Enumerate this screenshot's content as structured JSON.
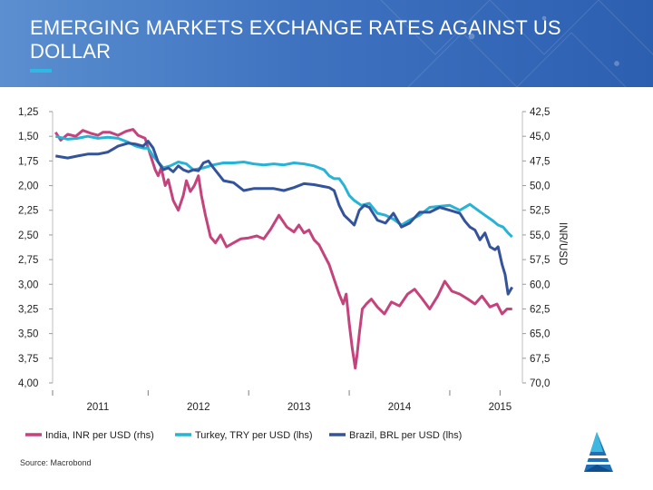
{
  "header": {
    "title": "EMERGING MARKETS EXCHANGE RATES AGAINST US DOLLAR"
  },
  "source": "Source: Macrobond",
  "colors": {
    "india": "#c4437c",
    "turkey": "#27b3d6",
    "brazil": "#34539a",
    "header": "#3f73c0",
    "accent": "#30b8e4"
  },
  "chart_data": {
    "type": "line",
    "title": "",
    "xlabel": "",
    "right_axis_label": "INR/USD",
    "x_ticks": [
      "2011",
      "2012",
      "2013",
      "2014",
      "2015"
    ],
    "x_tick_values": [
      2011.0,
      2012.0,
      2013.0,
      2014.0,
      2015.0
    ],
    "xlim": [
      2010.55,
      2015.15
    ],
    "left_axis": {
      "ylim": [
        1.25,
        4.0
      ],
      "inverted": true,
      "ticks": [
        "1,25",
        "1,50",
        "1,75",
        "2,00",
        "2,25",
        "2,50",
        "2,75",
        "3,00",
        "3,25",
        "3,50",
        "3,75",
        "4,00"
      ],
      "tick_values": [
        1.25,
        1.5,
        1.75,
        2.0,
        2.25,
        2.5,
        2.75,
        3.0,
        3.25,
        3.5,
        3.75,
        4.0
      ]
    },
    "right_axis": {
      "ylim": [
        42.5,
        70.0
      ],
      "inverted": true,
      "ticks": [
        "42,5",
        "45,0",
        "47,5",
        "50,0",
        "52,5",
        "55,0",
        "57,5",
        "60,0",
        "62,5",
        "65,0",
        "67,5",
        "70,0"
      ],
      "tick_values": [
        42.5,
        45.0,
        47.5,
        50.0,
        52.5,
        55.0,
        57.5,
        60.0,
        62.5,
        65.0,
        67.5,
        70.0
      ]
    },
    "series": [
      {
        "name": "India, INR per USD (rhs)",
        "axis": "right",
        "color": "#c4437c",
        "x": [
          2010.58,
          2010.63,
          2010.7,
          2010.78,
          2010.85,
          2010.93,
          2011.0,
          2011.05,
          2011.12,
          2011.2,
          2011.28,
          2011.35,
          2011.4,
          2011.47,
          2011.52,
          2011.57,
          2011.6,
          2011.63,
          2011.67,
          2011.7,
          2011.75,
          2011.8,
          2011.85,
          2011.88,
          2011.92,
          2011.96,
          2012.0,
          2012.03,
          2012.07,
          2012.12,
          2012.17,
          2012.22,
          2012.28,
          2012.35,
          2012.42,
          2012.5,
          2012.58,
          2012.65,
          2012.72,
          2012.8,
          2012.88,
          2012.95,
          2013.0,
          2013.05,
          2013.1,
          2013.15,
          2013.2,
          2013.25,
          2013.3,
          2013.35,
          2013.4,
          2013.44,
          2013.47,
          2013.5,
          2013.53,
          2013.56,
          2013.58,
          2013.6,
          2013.63,
          2013.67,
          2013.72,
          2013.78,
          2013.85,
          2013.92,
          2014.0,
          2014.08,
          2014.15,
          2014.22,
          2014.3,
          2014.38,
          2014.45,
          2014.52,
          2014.6,
          2014.68,
          2014.75,
          2014.82,
          2014.9,
          2014.97,
          2015.02,
          2015.07,
          2015.12
        ],
        "y": [
          44.6,
          45.4,
          44.8,
          45.0,
          44.4,
          44.7,
          44.9,
          44.6,
          44.6,
          44.9,
          44.5,
          44.3,
          44.9,
          45.2,
          46.8,
          48.4,
          49.0,
          48.2,
          50.0,
          49.4,
          51.5,
          52.5,
          51.0,
          49.5,
          50.6,
          50.0,
          49.0,
          51.0,
          53.0,
          55.2,
          55.8,
          55.0,
          56.2,
          55.8,
          55.4,
          55.3,
          55.1,
          55.4,
          54.4,
          53.0,
          54.2,
          54.7,
          54.0,
          54.8,
          54.5,
          55.5,
          56.0,
          57.0,
          58.0,
          59.5,
          61.0,
          62.0,
          61.0,
          64.0,
          66.5,
          68.5,
          67.0,
          65.0,
          62.5,
          62.0,
          61.5,
          62.3,
          63.0,
          61.8,
          62.2,
          61.0,
          60.5,
          61.4,
          62.5,
          61.2,
          59.7,
          60.7,
          61.0,
          61.5,
          62.0,
          61.2,
          62.3,
          62.0,
          63.0,
          62.5,
          62.5
        ]
      },
      {
        "name": "Turkey, TRY per USD (lhs)",
        "axis": "left",
        "color": "#27b3d6",
        "x": [
          2010.58,
          2010.7,
          2010.8,
          2010.9,
          2011.0,
          2011.1,
          2011.2,
          2011.3,
          2011.38,
          2011.45,
          2011.5,
          2011.55,
          2011.6,
          2011.65,
          2011.72,
          2011.8,
          2011.88,
          2011.95,
          2012.05,
          2012.15,
          2012.25,
          2012.35,
          2012.45,
          2012.55,
          2012.65,
          2012.75,
          2012.85,
          2012.95,
          2013.05,
          2013.15,
          2013.25,
          2013.3,
          2013.35,
          2013.4,
          2013.45,
          2013.5,
          2013.55,
          2013.62,
          2013.7,
          2013.78,
          2013.86,
          2013.94,
          2014.02,
          2014.1,
          2014.2,
          2014.3,
          2014.4,
          2014.5,
          2014.6,
          2014.7,
          2014.78,
          2014.85,
          2014.92,
          2014.98,
          2015.03,
          2015.08,
          2015.12
        ],
        "y": [
          1.5,
          1.53,
          1.52,
          1.5,
          1.52,
          1.51,
          1.52,
          1.56,
          1.6,
          1.62,
          1.62,
          1.7,
          1.76,
          1.82,
          1.8,
          1.76,
          1.78,
          1.84,
          1.82,
          1.79,
          1.77,
          1.77,
          1.76,
          1.78,
          1.79,
          1.78,
          1.79,
          1.77,
          1.78,
          1.8,
          1.84,
          1.9,
          1.93,
          1.93,
          2.0,
          2.1,
          2.15,
          2.2,
          2.18,
          2.28,
          2.3,
          2.34,
          2.4,
          2.35,
          2.3,
          2.22,
          2.21,
          2.2,
          2.25,
          2.19,
          2.25,
          2.3,
          2.35,
          2.4,
          2.42,
          2.48,
          2.52
        ]
      },
      {
        "name": "Brazil, BRL per USD (lhs)",
        "axis": "left",
        "color": "#34539a",
        "x": [
          2010.58,
          2010.7,
          2010.8,
          2010.9,
          2011.0,
          2011.1,
          2011.2,
          2011.3,
          2011.38,
          2011.45,
          2011.5,
          2011.55,
          2011.6,
          2011.65,
          2011.7,
          2011.75,
          2011.8,
          2011.85,
          2011.9,
          2011.95,
          2012.0,
          2012.05,
          2012.1,
          2012.15,
          2012.25,
          2012.35,
          2012.45,
          2012.55,
          2012.65,
          2012.75,
          2012.85,
          2012.95,
          2013.05,
          2013.15,
          2013.25,
          2013.3,
          2013.35,
          2013.4,
          2013.45,
          2013.5,
          2013.55,
          2013.6,
          2013.65,
          2013.7,
          2013.78,
          2013.86,
          2013.94,
          2014.02,
          2014.1,
          2014.2,
          2014.3,
          2014.4,
          2014.5,
          2014.6,
          2014.65,
          2014.7,
          2014.75,
          2014.8,
          2014.85,
          2014.9,
          2014.95,
          2014.98,
          2015.02,
          2015.05,
          2015.08,
          2015.12
        ],
        "y": [
          1.7,
          1.72,
          1.7,
          1.68,
          1.68,
          1.66,
          1.6,
          1.57,
          1.58,
          1.6,
          1.55,
          1.62,
          1.76,
          1.84,
          1.82,
          1.86,
          1.8,
          1.84,
          1.86,
          1.84,
          1.85,
          1.77,
          1.75,
          1.82,
          1.95,
          1.97,
          2.05,
          2.03,
          2.03,
          2.03,
          2.05,
          2.02,
          1.98,
          1.99,
          2.01,
          2.02,
          2.05,
          2.2,
          2.3,
          2.35,
          2.4,
          2.25,
          2.2,
          2.22,
          2.35,
          2.38,
          2.28,
          2.42,
          2.38,
          2.27,
          2.27,
          2.22,
          2.25,
          2.28,
          2.36,
          2.42,
          2.45,
          2.55,
          2.48,
          2.62,
          2.65,
          2.62,
          2.8,
          2.9,
          3.1,
          3.03
        ]
      }
    ],
    "legend": {
      "position": "bottom",
      "entries": [
        "India, INR per USD (rhs)",
        "Turkey, TRY per USD (lhs)",
        "Brazil, BRL per USD (lhs)"
      ]
    }
  }
}
